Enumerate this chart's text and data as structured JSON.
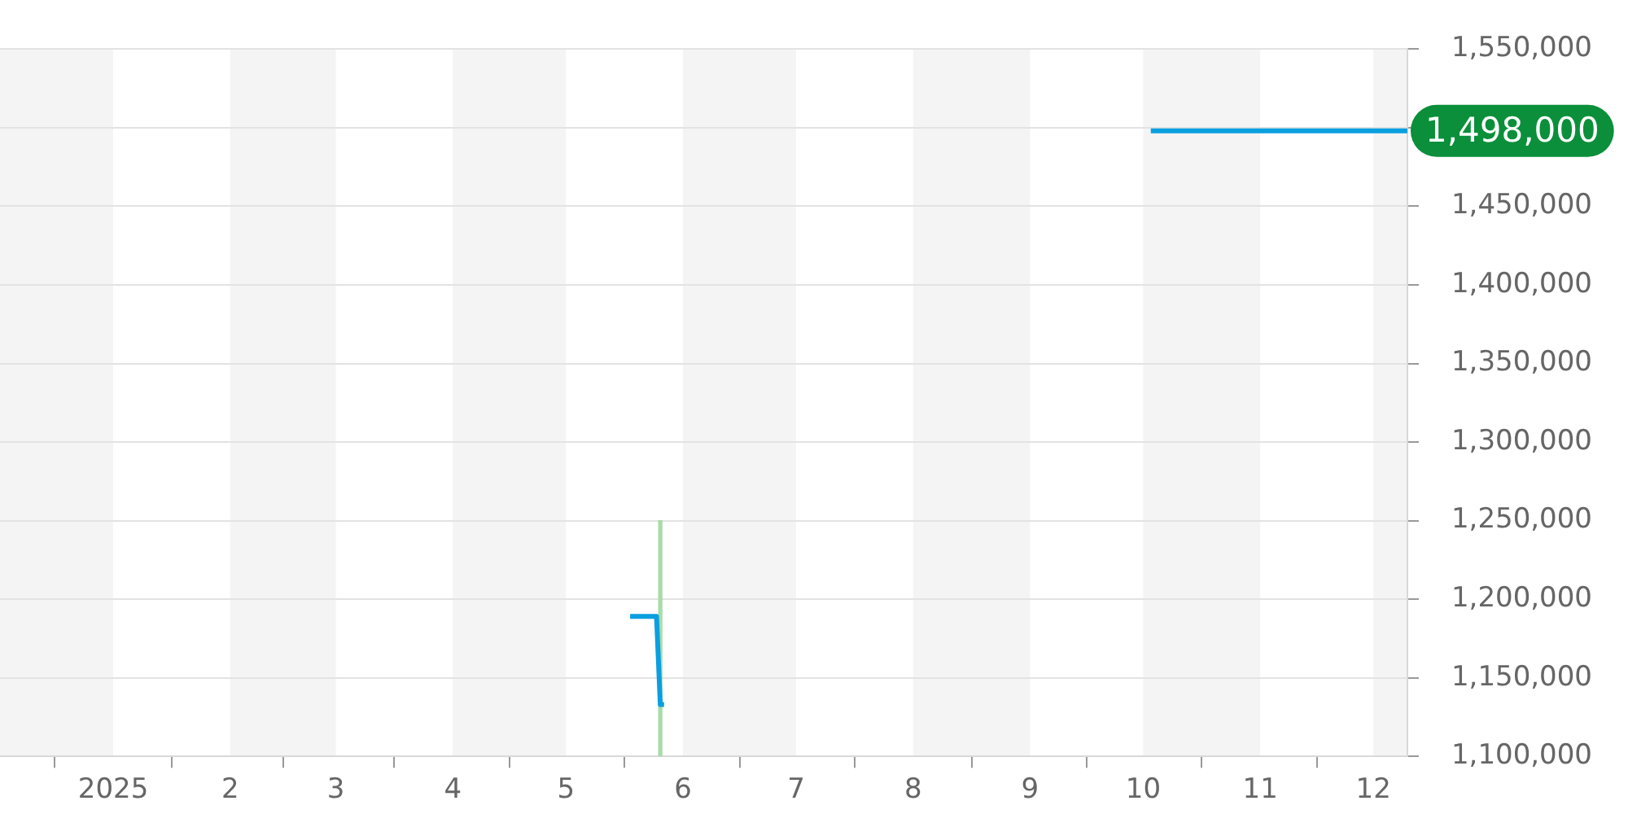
{
  "chart_data": {
    "type": "line",
    "series": [
      {
        "color": "#0a9fe0",
        "x": [
          "2025-05-18",
          "2025-05-25",
          "2025-05-26",
          "2025-05-27"
        ],
        "values": [
          1189000,
          1189000,
          1133000,
          1133000
        ]
      },
      {
        "color": "#0a9fe0",
        "x": [
          "2025-10-03",
          "2025-12-10"
        ],
        "values": [
          1498000,
          1498000
        ]
      },
      {
        "type": "bar",
        "color": "#a8dca8",
        "x": [
          "2025-05-26"
        ],
        "values": [
          150000
        ],
        "base": [
          1100000
        ]
      }
    ],
    "xlim": [
      "2024-12-02",
      "2025-12-10"
    ],
    "xticks": [
      {
        "value": "2025-01-01",
        "label": "2025"
      },
      {
        "value": "2025-02-01",
        "label": "2"
      },
      {
        "value": "2025-03-01",
        "label": "3"
      },
      {
        "value": "2025-04-01",
        "label": "4"
      },
      {
        "value": "2025-05-01",
        "label": "5"
      },
      {
        "value": "2025-06-01",
        "label": "6"
      },
      {
        "value": "2025-07-01",
        "label": "7"
      },
      {
        "value": "2025-08-01",
        "label": "8"
      },
      {
        "value": "2025-09-01",
        "label": "9"
      },
      {
        "value": "2025-10-01",
        "label": "10"
      },
      {
        "value": "2025-11-01",
        "label": "11"
      },
      {
        "value": "2025-12-01",
        "label": "12"
      }
    ],
    "ylim": [
      1100000,
      1550000
    ],
    "yticks": [
      {
        "value": 1100000,
        "label": "1,100,000"
      },
      {
        "value": 1150000,
        "label": "1,150,000"
      },
      {
        "value": 1200000,
        "label": "1,200,000"
      },
      {
        "value": 1250000,
        "label": "1,250,000"
      },
      {
        "value": 1300000,
        "label": "1,300,000"
      },
      {
        "value": 1350000,
        "label": "1,350,000"
      },
      {
        "value": 1400000,
        "label": "1,400,000"
      },
      {
        "value": 1450000,
        "label": "1,450,000"
      },
      {
        "value": 1500000,
        "label": null
      },
      {
        "value": 1550000,
        "label": "1,550,000"
      }
    ],
    "bands": [
      {
        "axis": "x",
        "from": "2024-12-02",
        "to": "2025-01-01",
        "color": "#f4f4f4"
      },
      {
        "axis": "x",
        "from": "2025-02-01",
        "to": "2025-03-01",
        "color": "#f4f4f4"
      },
      {
        "axis": "x",
        "from": "2025-04-01",
        "to": "2025-05-01",
        "color": "#f4f4f4"
      },
      {
        "axis": "x",
        "from": "2025-06-01",
        "to": "2025-07-01",
        "color": "#f4f4f4"
      },
      {
        "axis": "x",
        "from": "2025-08-01",
        "to": "2025-09-01",
        "color": "#f4f4f4"
      },
      {
        "axis": "x",
        "from": "2025-10-01",
        "to": "2025-11-01",
        "color": "#f4f4f4"
      },
      {
        "axis": "x",
        "from": "2025-12-01",
        "to": "2025-12-10",
        "color": "#f4f4f4"
      }
    ],
    "annotations": [
      {
        "text": "1,498,000",
        "x": "2025-12-10",
        "y": 1498000
      }
    ],
    "grid": "y",
    "legend": false,
    "marker": "none",
    "line_style": "solid"
  }
}
